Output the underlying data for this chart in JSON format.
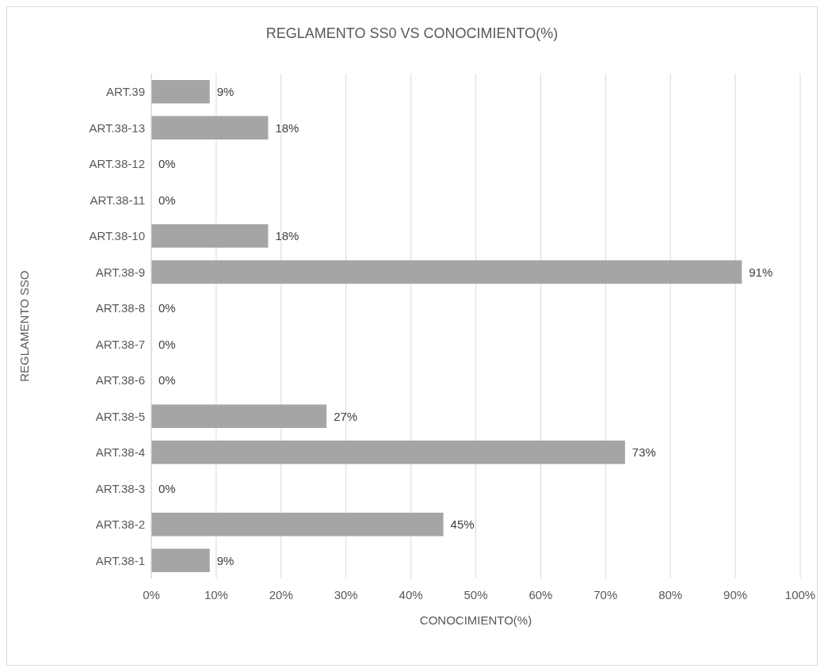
{
  "chart_data": {
    "type": "bar",
    "orientation": "horizontal",
    "title": "REGLAMENTO SS0 VS CONOCIMIENTO(%)",
    "xlabel": "CONOCIMIENTO(%)",
    "ylabel": "REGLAMENTO SSO",
    "categories": [
      "ART.39",
      "ART.38-13",
      "ART.38-12",
      "ART.38-11",
      "ART.38-10",
      "ART.38-9",
      "ART.38-8",
      "ART.38-7",
      "ART.38-6",
      "ART.38-5",
      "ART.38-4",
      "ART.38-3",
      "ART.38-2",
      "ART.38-1"
    ],
    "values": [
      9,
      18,
      0,
      0,
      18,
      91,
      0,
      0,
      0,
      27,
      73,
      0,
      45,
      9
    ],
    "value_labels": [
      "9%",
      "18%",
      "0%",
      "0%",
      "18%",
      "91%",
      "0%",
      "0%",
      "0%",
      "27%",
      "73%",
      "0%",
      "45%",
      "9%"
    ],
    "color": "#a5a5a5",
    "xlim": [
      0,
      100
    ],
    "xticks": [
      {
        "value": 0,
        "label": "0%"
      },
      {
        "value": 10,
        "label": "10%"
      },
      {
        "value": 20,
        "label": "20%"
      },
      {
        "value": 30,
        "label": "30%"
      },
      {
        "value": 40,
        "label": "40%"
      },
      {
        "value": 50,
        "label": "50%"
      },
      {
        "value": 60,
        "label": "60%"
      },
      {
        "value": 70,
        "label": "70%"
      },
      {
        "value": 80,
        "label": "80%"
      },
      {
        "value": 90,
        "label": "90%"
      },
      {
        "value": 100,
        "label": "100%"
      }
    ],
    "grid": "x"
  }
}
